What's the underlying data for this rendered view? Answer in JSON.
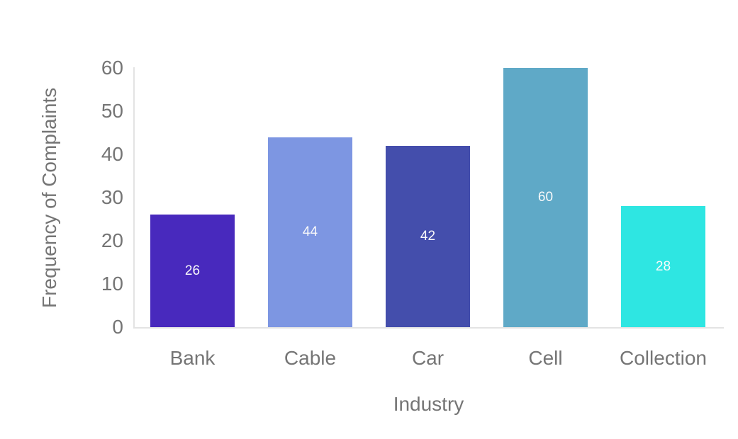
{
  "chart_data": {
    "type": "bar",
    "title": "",
    "categories": [
      "Bank",
      "Cable",
      "Car",
      "Cell",
      "Collection"
    ],
    "values": [
      26,
      44,
      42,
      60,
      28
    ],
    "bar_labels": [
      "26",
      "44",
      "42",
      "60",
      "28"
    ],
    "bar_colors": [
      "#4829bd",
      "#7d96e2",
      "#444eac",
      "#5fa9c7",
      "#2ee6e2"
    ],
    "xlabel": "Industry",
    "ylabel": "Frequency of Complaints",
    "yticks": [
      0,
      10,
      20,
      30,
      40,
      50,
      60
    ],
    "ylim": [
      0,
      60
    ],
    "grid": false,
    "legend": false,
    "value_label_color": "#fafafa",
    "axis_text_color": "#757575",
    "axis_line_color": "#e3e3e3",
    "background": "#ffffff"
  }
}
